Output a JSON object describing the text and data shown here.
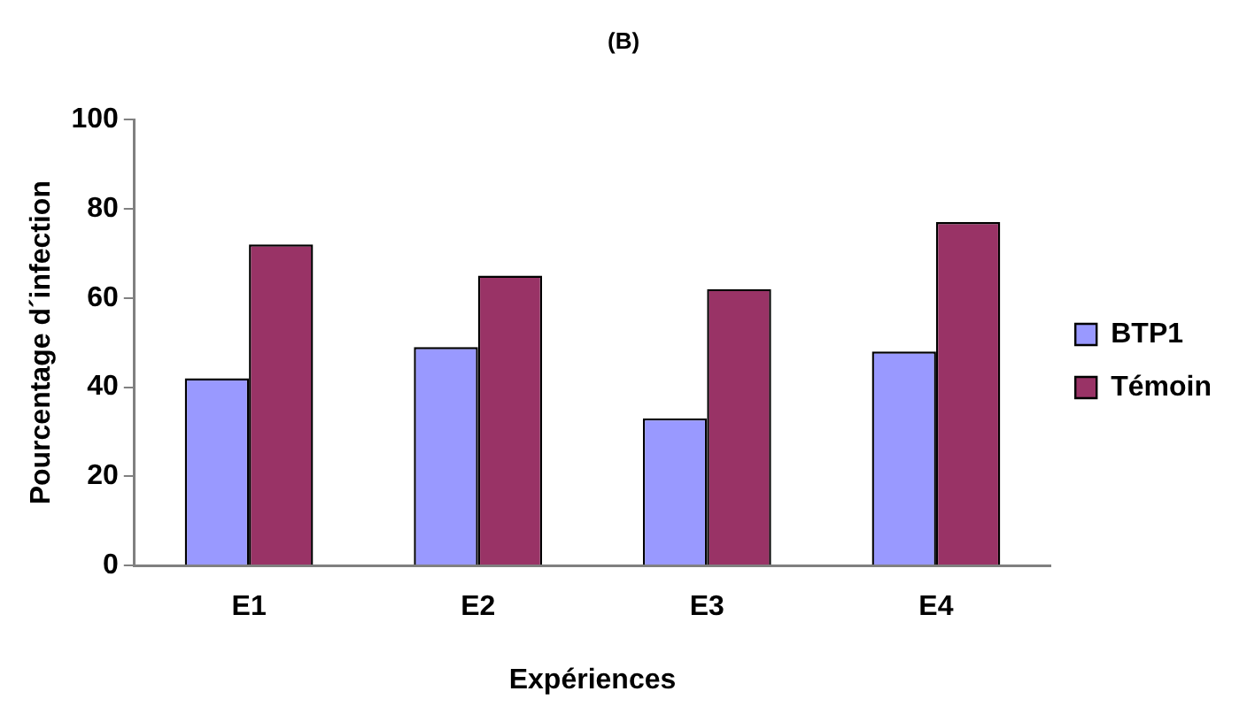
{
  "chart_data": {
    "type": "bar",
    "title": "(B)",
    "xlabel": "Expériences",
    "ylabel": "Pourcentage d´infection",
    "categories": [
      "E1",
      "E2",
      "E3",
      "E4"
    ],
    "series": [
      {
        "name": "BTP1",
        "color": "#9999ff",
        "values": [
          42,
          49,
          33,
          48
        ]
      },
      {
        "name": "Témoin",
        "color": "#993366",
        "values": [
          72,
          65,
          62,
          77
        ]
      }
    ],
    "ylim": [
      0,
      100
    ],
    "yticks": [
      0,
      20,
      40,
      60,
      80,
      100
    ],
    "grid": false,
    "legend": "right"
  }
}
